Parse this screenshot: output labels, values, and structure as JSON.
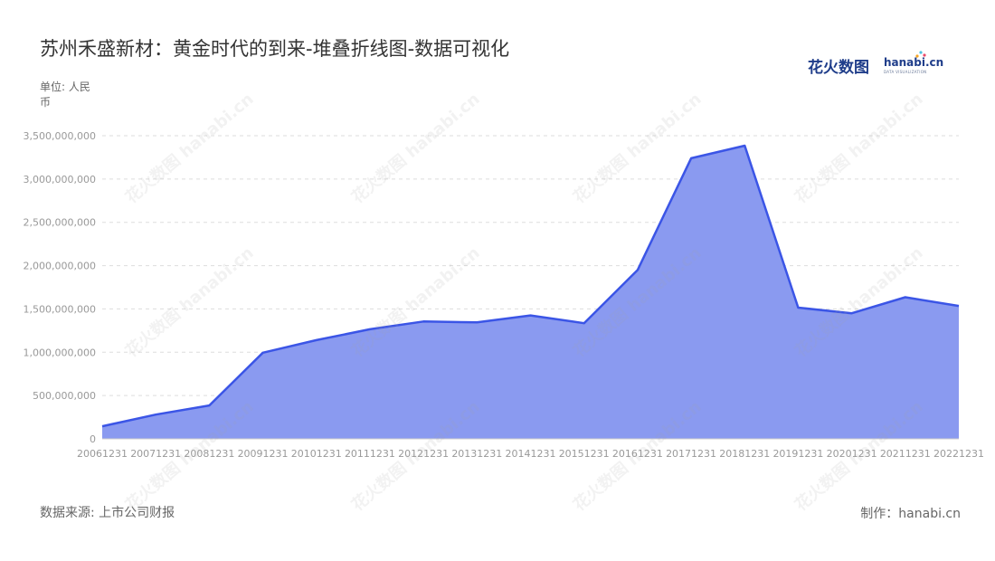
{
  "title": "苏州禾盛新材：黄金时代的到来-堆叠折线图-数据可视化",
  "unit_label": "单位: 人民币",
  "source_label": "数据来源: 上市公司财报",
  "credit_label": "制作：hanabi.cn",
  "logo": {
    "cn": "花火数图",
    "en": "hanabi.cn",
    "sub": "DATA VISUALIZATION"
  },
  "colors": {
    "area_fill": "#8a9af0",
    "line": "#3b55e6",
    "grid": "#dddddd",
    "axis_text": "#999999"
  },
  "chart_data": {
    "type": "area",
    "categories": [
      "20061231",
      "20071231",
      "20081231",
      "20091231",
      "20101231",
      "20111231",
      "20121231",
      "20131231",
      "20141231",
      "20151231",
      "20161231",
      "20171231",
      "20181231",
      "20191231",
      "20201231",
      "20211231",
      "20221231"
    ],
    "series": [
      {
        "values": [
          145000000,
          280000000,
          385000000,
          995000000,
          1140000000,
          1265000000,
          1355000000,
          1345000000,
          1425000000,
          1335000000,
          1950000000,
          3240000000,
          3385000000,
          1515000000,
          1450000000,
          1635000000,
          1535000000
        ]
      }
    ],
    "ylim": [
      0,
      3500000000
    ],
    "yticks": [
      0,
      500000000,
      1000000000,
      1500000000,
      2000000000,
      2500000000,
      3000000000,
      3500000000
    ],
    "ytick_labels": [
      "0",
      "500,000,000",
      "1,000,000,000",
      "1,500,000,000",
      "2,000,000,000",
      "2,500,000,000",
      "3,000,000,000",
      "3,500,000,000"
    ],
    "grid": true,
    "legend": "none"
  }
}
